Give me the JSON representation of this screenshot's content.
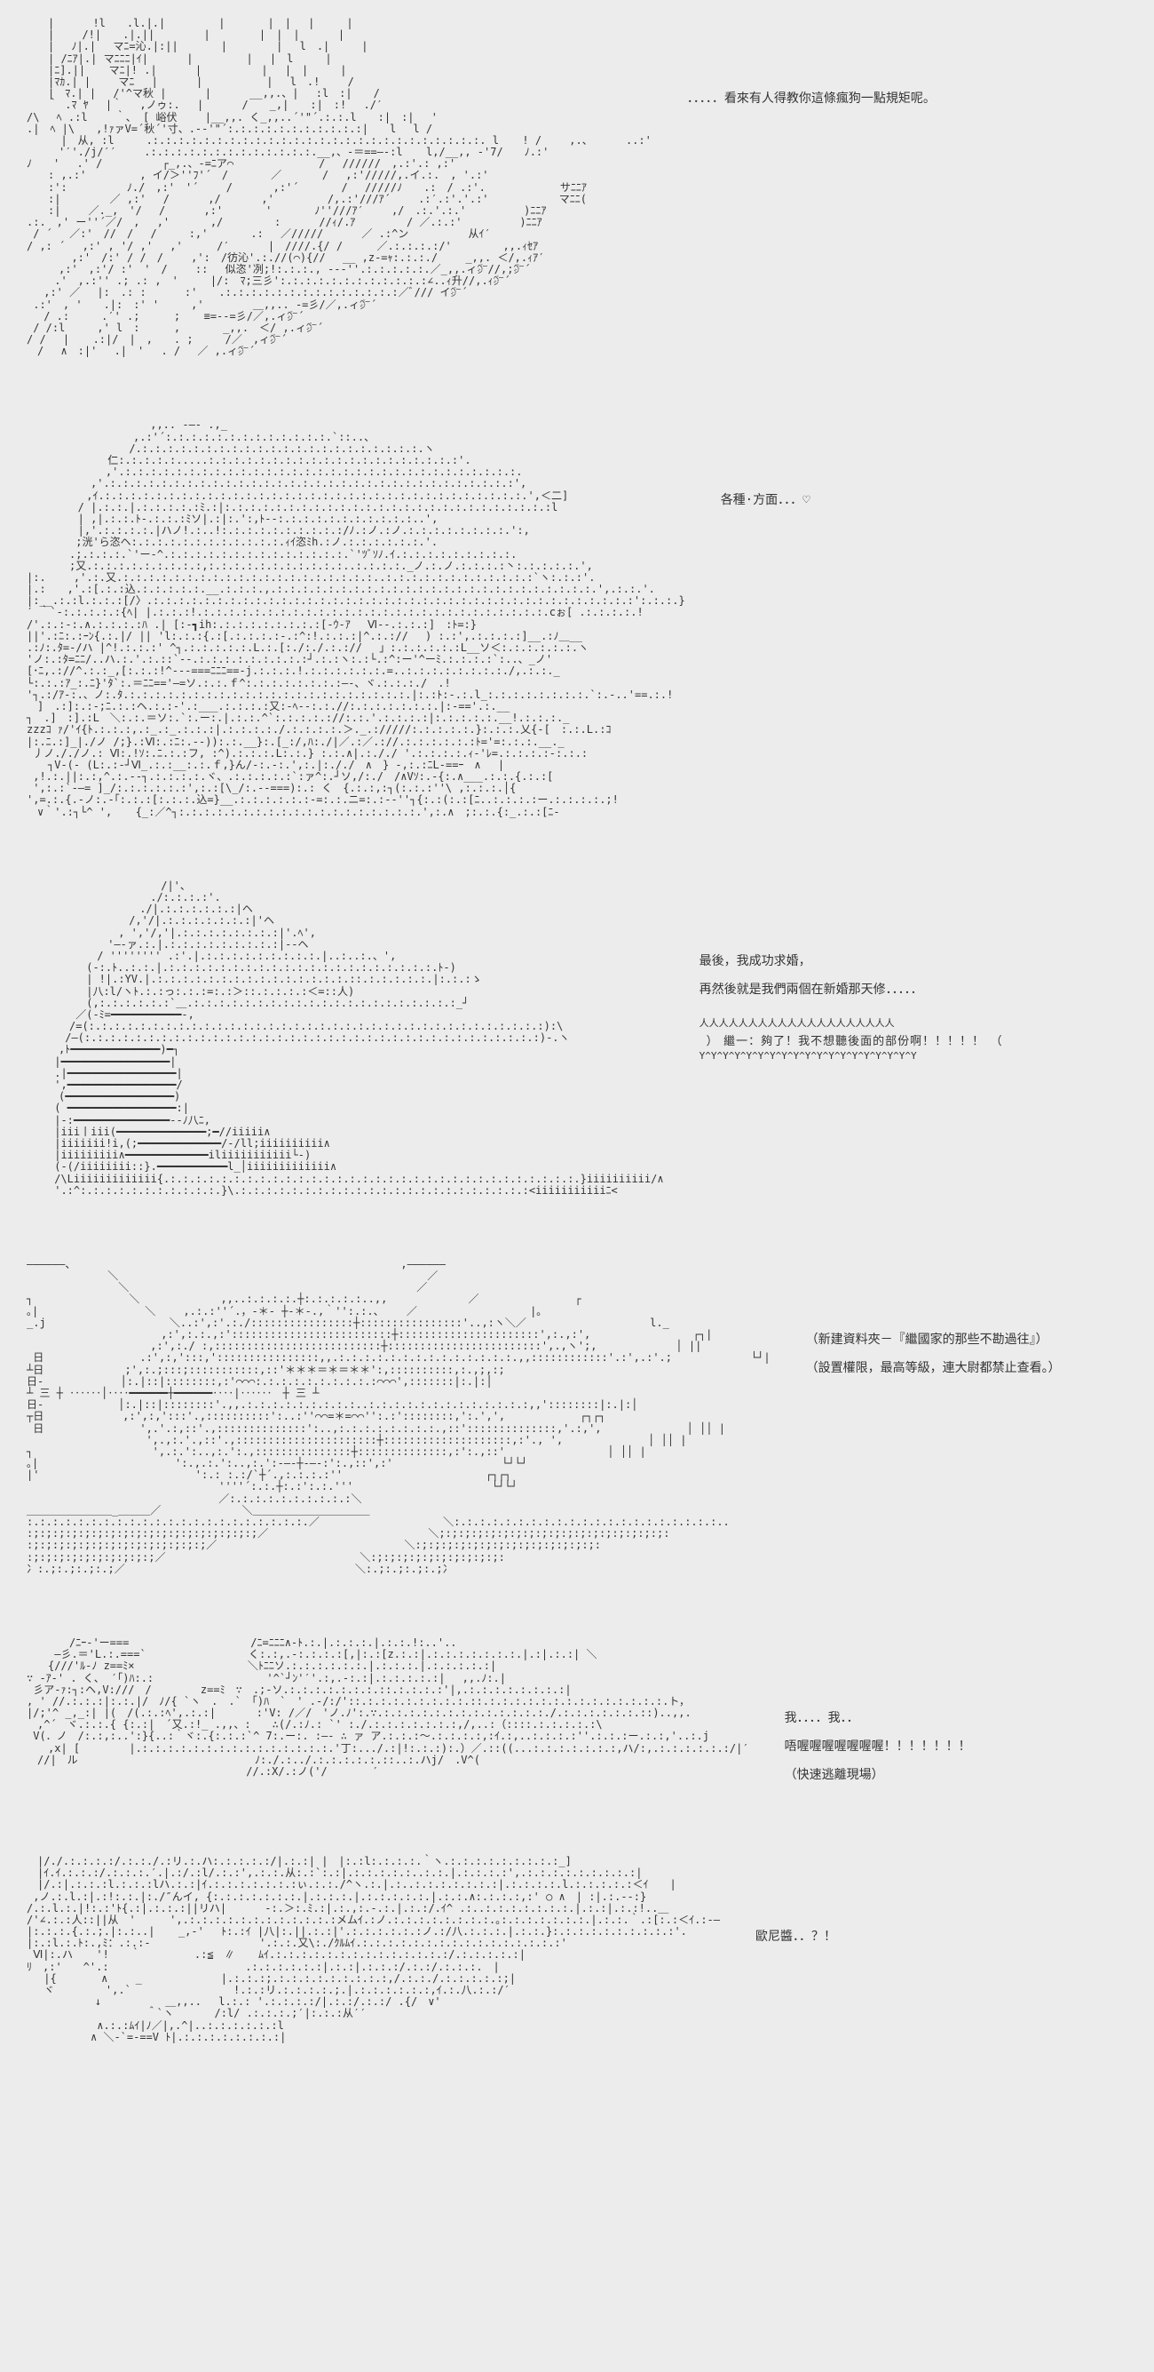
{
  "panels": [
    {
      "ascii": "　　|　　　 !l　　.l.|.|　　　　　|　　　　|　|　 |　　　|\n　　|　　 /!|　　.|.||　　　　 |　　　　 |　|　|　　　 |\n　　|　 ﾉ|.|　 マﾆ=沁.|:||　　　　|　　　　 |　 l　.|　　　|\n　　| /ﾆｱ|.| マﾆﾆﾆ|ｲ|　　　 |　　　　　|　 |　l　　　|\n　　|ﾆ].|| 　 マﾆ|! .|　　　 |　　　　　 |　 |　|　　　|\n　　|ﾏｶ.| | 　　マﾆ 　|　　　 |　　　　　　|　 l　.!　　 /\n　　|　ﾏ.| |　 /'^マ秋 |　　　 |　　　 __,,.、|　 :l　:|　　/\n　　｀ .ﾏ ﾔ　 |｀　 ,ノゥ:.　 |　　　 /　　_,|　　:|　:!　 ./′\n/\\　 ﾍ .:l　 　｀、 [ 峪伏　　 |__,,. く_,,..´'\"´.:.:.l　　:|　:|　 '\n.|　ﾍ |\\　　,!ｧァV=´秋´'寸、.-‐'\"´:.:.:.:.:.:.:.:.:.:.:|　　l　 l /\n 　 　|　从, :l　　　.:.:.:.:.:.:.:.:.:.:.:.:.:.:.:.:.:.:.:.:.:.:.:.:.:.:. l 　 ! /　　 ,.、　　　 ..:'\n　　　'′'./j/′′　　 .:.:.:.:.:.:.:.:.:.:.:.:.:.__,、‐＝==―-:l 　 l,/__,, -'7/　　ﾉ.:'\nﾉ　　'　 .' /　　　　　 ┌_,.、-=ﾆア⌒　　　　　　　　/　 //////　,.:'.: ,:'\n　　: ,.:'　　　　　, イ/＞''ﾌ'´　/　　　　／ 　 　 /　 ,:'/////,.イ.:.　, '.:'\n　　:':　　　　　 ﾉ./　,:'　'´　　 / 　 　 ,:'´　　　　/　 /////ﾉ　　.:　/ .:'.　　　　　　　サﾆﾆｱ\n　　:|　　　　 ／ ,:'　 /　　　 ,/ 　 　 ,'　　　　　/,.:'///ｱ´　　 .:′.:'.'.:' 　　　　　　マﾆﾆ(\n　　:|　　 ／._,　'/　 /　　　 ,:'　　　　'　　　　ﾉ''///ｱ′　　 ,/　.:.'.:.' 　 　 　 )ﾆﾆｱ\n.:.　,' ー''´／/　, 　,' 　 　 ,/ 　 　 　:　　　 //ｨ/.ｱ　 　 　 / ／.:.:' 　 　 　 )ﾆﾆｱ\n / ´　 ／:'　//　/　 /　　　:,'　　　　.:　 ／/////　　　 ／ .:^ン　　　　　 从ｲ′\n/ ,: ´　 ,:' , '/ ,'　 ,'　 　 /′ 　　　|　////.{/ / 　　 ／.:.:.:.:/'　 　 　 ,,.ｨｾｱ\n　　 　 ,:'　/:' / /　/　　 ,':　/彷沁'.:.//(⌒){//　 __ ,z-=ｬ:.:.:./　　 _,,. ＜/,.ｨｱ′\n　　　,:'　,:'/ :'　'　/　 　::　 似恣'冽;!:.:.:., --‐''.:.:.:.:.:.／_,,.ィ㌻//,;㌻´\n 　　.'　,.:'' .; .: ,　'　　　|/:　ﾏ;三彡':.:.:.:.:.:.:.:.:.:.:.:∠..ｨ升//,.ｨ㌻´\n 　,:' ／　 |:　.: :　　　 :'　　.:.:.:.:.:.:.:.:.:.:.:.:.:.:／ﾞ/// イ㌻´\n .:'　, '　　.|:　:' '　　　,' 　　　　＿,,.. -=彡/／,.ィ㌻´\n　 / .:　　　.′' .;　 　 ; 　 ≡=--=彡/／,.ィ㌻´\n / /:l　　　,' l　:　 　 ,　　　　_,,.　＜/ ,.ィ㌻´\n/ /　 | 　 .:|/　|　,　　. ;　　　/／　,ィ㌻´\n　/　 ∧　:|'　 .|　'　 . /　 ／ ,.ィ㌻´",
      "dialogue": [
        "．．．．．看來有人得教你這條瘋狗一點規矩呢。"
      ]
    },
    {
      "ascii": "　　　　　　　　　　　 ,,.. -―- .,_\n　　　　　　　　　　,.:'´:.:.:.:.:.:.:.:.:.:.:.:.:.`::..、\n　 　 　 　 　 　 /.:.:.:.:.:.:.:.:.:.:.:.:.:.:.:.:.:.:.:.:.:.:.ヽ\n　　　　　　　 仁:.:.:.:.:.....:.:.:.:.:.:.:.:.:.:.:.:.:.:.:.:.:.:.:.:'.\n　　 　 　 　 ,'.:.:.:.:.:.:.:.:.:.:.:.:.:.:.:.:.:.:.:.:.:.:.:.:.:.:.:.:.:.:.:.\n　　　　　　,'.:.:.:.:.:.:.:.:.:.:.:.:.:.:.:.:.:.:.:.:.:.:.:.:.:.:.:.:.:.:.:.:',\n　　　　　 ,ｲ.:.:.:.:.:.:.:.:.:.:.:.:.:.:.:.:.:.:.:.:.:.:.:.:.:.:.:.:.:.:.:.:.:.',＜二]\n　 　 　 / |.:.:.|.:.:.:.:.:ﾐ.:|:.:.:.:.:.:.:.:.:.:.:.:.:.:.:.:.:.:.:.:.:.:.:.:.:.:l\n　 　 　 | ,|.:.:.ﾄ‐.:.:.:ﾐソ|.:|:.':,ﾄ‐-:.:.:.:.:.:.:.:.:.:.:..',\n　 　 　 |,'.:.:.:.:.|ハノ!.:..!:.:.:.:.:.:.:.:.:.:/ﾉ.:ノ.:ノ.:.:.:.:.:.:.:.:.':,\n　　　　 ;洸'ら恣ヘ:.:.:.:.:.:.:.:.:.:.:.:.ｨｲ恣ﾐh.:ノ.:.:.:.:.:.:.'.\n　　　　.;.:.:.:.`'ー-^.:.:.:.:.:.:.:.:.:.:.:.:.:.:.`'ﾂﾞｿﾉ.ｲ.:.:.:.:.:.:.:.:.:.\n　　　　;又.:.:.:.:.:.:.:.:.:,:.:.:.:.:.:.:.:.:.:.:..:.:.:.:._ノ.:.ノ.:.:.:.:丶:.:.:.:.:.',\n|:.　　 ,'.:.又.:.:.:.:.:.:.:.:.:.:.:.:.:.:.:.:.:.:.:.:..:.:.:.:.:.:.:.:.:.:.:.:`ヽ:.:.:'.\n|.:　　,'.:[.:.:込.:.:.:.:.:.__.:.:.:.,.:.:.:.:.:.:.:.:.:.:.:.:.:.:.:.:.:.:.:.:.:.:.:.:.:.',.:.:.'.\n|:__.:.:l.:.:.:[/〉.:.:.:.:.:.:.:.:.:.:.:.:.:.:.:.:.:.:.:.:.:.:.:.:.:.:.:.:.:.:.:.:.:.:.:.:.:.:':.:.:.}\n′ ｀`‐:.:.:.:.:{ﾍ| |.:.:.:!.:.:.:.:.:.:.:.:.:.:.:.:.:.:.:.:.:.:.:.:.:.:.:.:.:.:.:.cぉ[ .:.:.:.:.!\n/'.:.:-:.∧.:.:.:.:ﾊ .| [:‐┓ih:.:.:.:.:.:.:.:.:[‐ｳ-ｱ　 Ⅵ--.:.:.:]　:ﾄ=:}\n||'.:ﾆ:.:ｰﾝ{.:.|/ || 'l:.:.:{.:[.:.:.:.:‐.:^:!.:.:.:|^.:.://　 ) :.:',.:.:.:.:]__.:ﾉ＿__\n.:ﾉ:.ﾀ=-/ハ |^!.:.:.:' ^┐.:.:.:.:.:.L.:.[:./:./.:.://　 」:.:.:.:.:.:L__ソ＜:.:.:.:.:.:.ヽ\n'ノ:.:ﾀ=ﾆﾆ/..ハ.:.'.:.::`‐-.:.:.:.:.:.:.:.:.:┘.:.:ヽ:.:└.:^:ー'^ーﾐ.:.:.:.:`:..、_ノ'\n[･ﾆ,.://^.:.:_,[:.:.:!^‐-‐===ﾆﾆﾆ==‐j.:.:.:.!.:.:.:.:.:.:.=..:.:.:.:.:.:.:.:./,.:.:._\n└:.:.:ｱ_:.ﾆ}'ﾀ`:.＝ﾆﾆ=='―=ソ.:.:.ｆ^:.:.:.:.:.:.:.:―-、ヾ.:.:.:./　.!\n'┐.:/ｱ-:.、ノ:.ﾀ.:.:.:.:.:.:.:.:.:.:.:.:.:.:.:.:.:.:.:.:.:.:.|:.:ﾄ:‐.:.l_:.:.:.:.:.:.:.:.`:.-..'==.:.!\n　]　.:]:.:-;ﾆ.:.:ヘ.:.:‐'.:___.:.:.:.:又:-ﾍ-‐:.:.//:.:.:.:.:.:.:.|:-=='.:.__\n┐　.]　:].:L　＼:.:.＝ソ:.`:.ー:.|.:.:.^`:.:.:.:.://:.:.'.:.:.:.:|:.:.:.:.:.__!.:.:.:._\nzzzｺ ｧ/'ｲ{ﾄ.:.:.:,.:_.:_.:.:.:|.:.:.:.:./.:.:.:.:.＞._.://///:.:.:.:.:.}:.:.:.乂{-[　:.:.L.:ｺ\n|:.ﾆ.:]_|./ノ /;}.:Ⅵ:.:ﾆ:.‐‐)):.:.__}:.[_:/,ﾊ:./|／.:／.://.:.:.:.:.:.:ﾄ='=:.:.:.__._\n 丿ノ././ノ.: Ⅵ:.!ｿ:.ﾆ.:.:フ, :^).:.:.:.L:.:.} :.:.∧|.:././ '.:.:.:.:.ｨ‐'ﾚ=.:.:.:.:‐:.:.:\n　　┐V-(- (L:.:‐┘Ⅵ_.:.:__:.:.ｆ,}ん/-:.-:.',:.|:././　∧　} -,:.:ﾆL‐==ｰ　∧　 |\n ,!.:.||:.:,^.:.--┐.:.:.:.:.ヾ、.:.:.:.:.:`:ァ^:.┘ソ,/:./　/∧Vｿ:.‐{:.∧___.:.:.{.:.:[\n ',:.:`-―= ]_/:.:.:.:.:.:',:.:[\\_/:.--===):.: く　{.:.:,:┐(:.:.:''\\ ,:.:.:.│{\n',=.:.{.-ノ:.-｢:.:.:[:.:.:.込=}__.:.:.:.:.:.:‐=:.:.ニ=:.:--''┐{:.:(:.:[ﾆ..:.:.:.:ー.:.:.:.:.;!\n　∨｀'.:┐└^ ', 　 {_:／^┐:.:.:.:.:.:.:.:.:.:.:.:.:.:.:.:.:.:.:.',:.∧　;:.:.{:_.:.:[ﾆ-",
      "dialogue": [
        "各種·方面．．．♡"
      ]
    },
    {
      "ascii": "　　　　　　　　　　　　 /|'、\n　　　　　　　　　　　 ./:.:.:.:'.\n　　　　　　　　　　 ./|.:.:.:.:.:.:|ヘ\n　　　　　　　　　 /,'/|.:.:.:.:.:.:.:|'ヘ\n　　　　　　　　 , ','/,'|.:.:.:.:.:.:.:.:|'.ﾍ',\n　　　　　　　 '―-ァ.:.|.:.:.:.:.:.:.:.:.:|‐-ヘ\n　　　　　　 / '''''''' .:'.|.:.:.:.:.:.:.:.:.:.|..:..:.、',\n　　　　　 (‐:.ﾄ..:.:.|.:.:.:.:.:.:.:.:.:.:.:.:.:.:.:.:.:.:.:.:.:.ﾄ‐)\n　　　　　 | !|.:YV.|.:.:.:.:.:.:.:.:.:.:.:.:.:.:.:.::.:.:.:.:.:.|:.:.:ゝ\n　　　　　 |八:l/ヽﾄ.:.:っ:.:.:=:.:＞::.:.:.:.:＜=::人)\n　　　　　 (,:.:.:.:.:.:`＿.:.:.:.:.:.:.:.:.:.:.:.:.:.:.:.:.:.:.:.:.:_┘\n　　　　 ／(-ﾐ=━━━━━━━━━━━-,\n　　　　/=(:.:.:.:.:.:.:.:.:.:.:.:.:.:.:.:.:.:.:.:.:.:.:.:.:.:.:.:.:.:.:.:.:.:.:.:):\\\n　　　 /―(:.:.:.:.:.:.:.:.:.:.:.:.:.:.:.:.:.:.:.:.:.:.:.:.:.:.:.:.:.:.:.:.:.:.:.:)‐.ヽ\n　　　,ﾄ━━━━━━━━━━━━━━)━┐\n　　 |━━━━━━━━━━━━━━━━━|\n　　 .|━━━━━━━━━━━━━━━━━|\n　　 ',━━━━━━━━━━━━━━━━━/\n　　　(━━━━━━━━━━━━━━━━━)\n　　 ( ━━━━━━━━━━━━━━━━━:|\n　　 |-:━━━━━━━━━━━━━━━‐-ﾉ八ﾆ,\n　　 |iii丨iii(━━━━━━━━━━━━━━;━//iiiii∧\n　　 |iiiiiii!i,(;━━━━━━━━━━━━━/-/ll;iiiiiiiiii∧\n　　 |iiiiiiiii∧━━━━━━━━━━━━━iliiiiiiiiiii└-)\n　　 (-(/iiiiiiii::}.━━━━━━━━━━━l_│iiiiiiiiiiiii∧\n　　 /\\Liiiiiiiiiiiii{.:.:.:.:.:.:.:.:.:.:.:.:.:.:.:.:.:.:.:.:.:.:.:.:.:.:.:.:.:.:.:.:.}iiiiiiiiii/∧\n　　 '.:^:.:.:.:.:.:.:.:.:.:.:.}\\.:.:.:.:.:.:.:.:.:.:.:.:.:.:.:.:.:.:.:.:.:.:.:<iiiiiiiiiiiﾆ<",
      "dialogue": [
        "最後，我成功求婚，",
        "再然後就是我們兩個在新婚那天修．．．．．"
      ],
      "bubble": "繼一：夠了！我不想聽後面的部份啊！！！！！"
    },
    {
      "ascii": "――――――、　　　　　　　　　　　　　　　　　　　　　　　　　　　　　　　,――――――\n　　　　　　　 ＼　　　　　　　　　　　　　　　　　　　　　　　　　　　　　／\n　　　　　　　　 ＼　　　　　　　　　　　　　　　　　　　　　　　　　　　／\n┐　　　　　　　　　＼　　　　　　　 ,,..:.:.:.:.┼:.:.:.:.:..,,　　　　　　　 ／　　　　　　　　　┌\n｡|　　　　　　　　　　＼　　 ,.:.:''´.，-＊- ┼-＊-.,｀'':.:.、　　 ／　　　　　　　　　　 |｡\n_.j　　　　　　　　　　　 ＼..:',:'.:./::::::::::::::::┼::::::::::::::::'..,:ヽ＼／　　　　　　　　　　　 l._\n　　　　　　　　　　　　 ,:',:.:.,:':::::::::::::::::::::::::┼::::::::::::::::::::::',:.,:',　 　 　 　 　 　 ┌┐|\n　　　　　　　　　　　 ,:',:./ :,::::::::::::::::::::::::::┼::::::::::::::::::::::::',.,ヽ';,　 　 　　 　 │ ||\n 日　　 　 　 　 　 .:',:,':::,'::::::::::::::::,,.:.:.:.:.:.:.:.:.:.:.:.:.:.:.,,::::::::::::'.:',.:'.;　　 　 　 　 └┘|\n┴日　　　　　　　 ;',:.;:::;:::::::::::,::'＊＊＊＝＊＝＊＊':,::::::::::,:.,;,:;\n日-　　　　　 　 │:.|::|::::::::,:'⌒⌒⌒:.:.:.:.:.:.:.:.:.:⌒⌒⌒',:::::::|:.|:│\n┴ 三 ┼ ‥‥‥│‥‥━━━━━━┼━━━━━━‥‥|‥‥‥　┼ 三 ┴\n日-　　　　　　　│:.|::|::::::::'.,,.:.:.:.:.:.:.:.:.:..:.:.:.:.:.:.:.:.:.:.:.:.:,,'::::::::|:.|:│\n┬日　 　 　 　 　,:',:,':::'.,::::::::::':..:''⌒⌒=＊=⌒⌒'':.:'::::::::,':.',', 　 　 　 　 ┌┐┌┐\n 日　　 　 　 　 　 ',.'.:,::'.,::::::::::::::':..,:.:.:.:.:.:.:.:.,::'::::::::::::::,'.:,',　 　 　 　 　 │ ││ |\n　　　　　　　　 　 　',.,:.'.,::'.,::::::::::::::::::::::┼::::::::::::::::::::,:'., ',　 　 　 　 　 │ ││ |\n┐　　　　　　　　　 　 ',.:.':..,:.':.,:::::::::::::::┼::::::::::::::,:':.,::'　 　 　 　 　 　 │ ││ |\n｡|　 　 　 　 　 　 　 　 ':.,.:.':..,:.':‐―-┼-―‐:':.,::',:' 　 　 　 　 　 　 └┘└┘\n|'　　　　　　 　 　 　 　 　 ':.: :.:/`┼´.,:.:.:.:'' 　 　 　 　 　 　 　 　 ┌┐┌┐\n　　　 　 　 　 　 　 　 　 　 　 ''''´:.:.┼:.:':.:.'''　　　　　　　　　　　　　└┘└┘\n　　　 　 　 　 　 　 　 　 　 　 ／:.:.:.:.:.:.:.:.:.:＼\n＿＿＿＿＿＿＿＿_＿＿＿／ 　　　　　　　＼＿＿＿＿＿＿＿＿＿＿＿\n:.:.:.:.:.:.:.:.:.:.:.:.:.:.:.:.:.:.:.:.:.:.／　　　　　　　　　　　 ＼:.:.:.:.:.:.:.:.:.:.:.:.:.:.:.:.:.:.:.:.:..\n:;:;:;:;:;:;:;:;:;:;:;:;:;:;:;:;:;:;／ 　 　 　 　 　 　 　 　 　 ＼;:;:;:;:;:;:;:;:;:;:;:;:;:;:;:;:;:;:\n:;:;:;:;:;:;:;:;:;:;:;:;:;:;／　　　　　　　　　　　　　　　　　 ＼:;:;:;:;:;:;:;:;:;:;:;:;:;:;:\n:;:;:;:;:;:;:;:;:;:;／ 　 　 　 　 　 　 　 　 　 　 　 ＼:;:;:;:;:;:;:;:;:;:;:\n冫:.;:.;:.;:.;／　　　　　　　　　　　　　　　　　　　　　 ＼:.;:.;:.;:.;冫",
      "dialogue": [
        "（新建資料夾－『繼國家的那些不勘過往』）",
        "（設置權限，最高等級，連大尉都禁止查看。）"
      ]
    },
    {
      "ascii": "　　　　/ﾆｰ‐'ー===　　　　　　 　 　 　 /ﾆ=ﾆﾆﾆ∧‐ﾄ.:.|.:.:.:.|.:.:.!:..'..\n　　 —彡.＝'L.:.===`　 　 　 　 　 　 く:.:,.-:.:.:.:[,|:.:[z.:.:|.:.:.:.:.:.:.:.|.:|.:.:| ＼\n　　{///'ﾙ‐ﾉ z==ﾐ×　 　 　 　 　 　 　＼ﾄﾆﾆソ.:.:.:.:.:.:.|.:.:.:.|.:.:.:.:.:|\n∵ ‐ｱ-' . く、 ′｢)ﾊ:.:　　　　　　　　　　 '^`┘ﾝ'′'.:,.‐:.:|.:.:.:.:.:|　 ,,.ﾉ:.|\n 彡ア-ｧ:┐:ヘ,V:///　/　　　　 z==ﾐ　∵　.;-ソ.:.:.:.:.:.:.:.::.:.:.:.:'|,.:.:.:.:.:.:.:.:|\n, ' //.:.:.:|:.:.|/　ﾉ/{ `ヽ　.　.`　｢)ﾊ　`　' .-/:/'::.:.:.:.:.:.:.:.:.::.:.:.:.:.:.:.:.:.:.:.:.:.:.:.ト，\n|/;'^ _,_:| |(　/(.:.:ﾍ',.:.:| 　 　 :'V: /／/　'ノ.ﾉ':.∵.:.:.:.:.:.:.:.:.:.:.:.:.:./.:.:.:.:.:.:.::)..,,.\n　,^´　ヾ.:.:.{ {:.:|　´又.:!_ .,,、:　　∴(/.:ﾉ.: `' :./.:.:.:.:.:.:.:,/,..:（::::.:.:.:.:.:\\\n V(．ノ　/:.:,:..':}{..:｀ヾ:.{:.:.:`^ 7:.ー:. :―- ∴ ァ ア.:.:.:～.:.:.:.:,:ｲ.:,..:.:.:.:''.:.:.:ー.:.:,'..:.j\n　　,x| [　　　　 |.:.:.:.:.:.:.:.:.:.:.:.:.:.:.:.'丁:.../.:|!:.:.:):.）／.::((...:.:.:.:.:.:.:,ハ/:,.:.:.:.:.:.:/|′\n　//|　ル　　　　　　　　 　 　 　 　 　 ﾉ:./.:../.:.:.:.:.:.::..:.ハj/　.V^(\n　　　　　　　　　　　　　　　　　　　　 //.:X/.:ノ('/　　 　 ′",
      "dialogue": [
        "我．．．．我．．",
        "唔喔喔喔喔喔喔喔！！！！！！！",
        "（快速逃離現場）"
      ]
    },
    {
      "ascii": "　|/./.:.:.:.:/.:.:./.:リ.:.ハ:.:.:.:.:/|.:.:| |　|:.:l:.:.:.:.｀ヽ.:.:.:.:.:.:.:.:.:_]\n　|ｲ.ｲ.:.:.:/.:.:.:.′.|.:/.:l/.:.:',.:.:.从:.:`:.:|.:.:.:.:.:..:.:.|.:.:.:.:',.:.:.:.:.:.:.:.:.:|\n　|/.:|.:.:.:l.:.:.:lハ.:.:|ｲ.:.:.:.:.:.:.:ぃ.:.:./^ヽ.:.|.:..:.:.:.:.:.:.:|.:.:.:.:.l.:.:.:.:.:＜ｲ　　|\n ,ノ.:.l.:|.:!:.:.|:./″んイ, {:.:.:.:.:.:.:.|.:.:.:.|.:.:.:.:.:.|.:.:.∧:.:.:.:,:' ○ ∧　| :|.:.‐‐:}\n/.:.l.:.|!:.:'ﾄ{.:|.:.:.:||リハ|　　 　-:.＞:.ﾐ.:|.:.,:.-.:.|.:.:/.ｲ^ .:..:.:.:.:.:.:.:.|.:.:|.:.:!..＿\n/'∠.:.:人::||从　' 　 　',.:.:.:.:.:.:.:.:.:.:.:.:メムｲ.:ノ.:.:.:.:.:.:.:.:.｡:.:.:.:.:.:.:.|.:.:.｀.:[:.:＜ｲ.:-―\n|:.:.:.{.:.;.|:.:..| 　 _,‐' 　ﾄ:.:ｲ |八|:.||.:.:|'.:.:.:.:.:.:ノ.:/八.:.:.:.|.:.:.}:.:.:.:.:.:.:.:.:.:'.\n|:.:l.:.ﾄ:.,ﾐ：.:.:- 　 　 　 　 　 　 '.:.:.又\\:./ｸﾙﾑｲ.:.:.:.:.:.:.:.:.:.:.:.:.:.:.:.:'\n Ⅵ|:.ハ 　 '!　　｀　　　　　.:≦　∥ 　 ﾑｲ.:.:.:.:.:.:.:.:.:.:.:.:.:.:/.:.:.:.:.:|\nﾘ　,:'　　^'.:　　　　　　　　　 　 　 .:.:.:.:.:.:|.:.:|.:.:.:/.:.:/.:.:.:.　|\n　 |{　 　 　∧　　 _　　 　 　 　 |.:.:.:;.:.:.:.:.:.:.:.:.:,/.:.:./.:.:.:.:.:;|\n　 ヾ　 　 　 ',.`　　　　　　　　　 !.:.:リ.:.:.:.:.;.|.:.:.:.:.:.:,ｲ.:.八.:.:/′\n　 　 　 　 ↓　　　　　　＿,,..　 l.:.: '.:.:.:.:/|.:.:/.:.:/ .{/　∨'\n　 　 　 　 　 　 　 ＾`ヽ 　 　 /:l/ .:.:.:.;′|:.:.:从′′\n　　　　　 　∧.:.:ﾑｲ|ﾉ／|,.^|..:.:.:.:.:.:l\n　　　　　　∧ ＼-`=‐==V ﾄ|.:.:.:.:.:.:.:.:|",
      "dialogue": [
        "歐尼醬．．？！"
      ]
    }
  ],
  "bubble_decor_top": "人人人人人人人人人人人人人人人人人人人人",
  "bubble_decor_bottom": "Y^Y^Y^Y^Y^Y^Y^Y^Y^Y^Y^Y^Y^Y^Y^Y^Y^Y^Y"
}
